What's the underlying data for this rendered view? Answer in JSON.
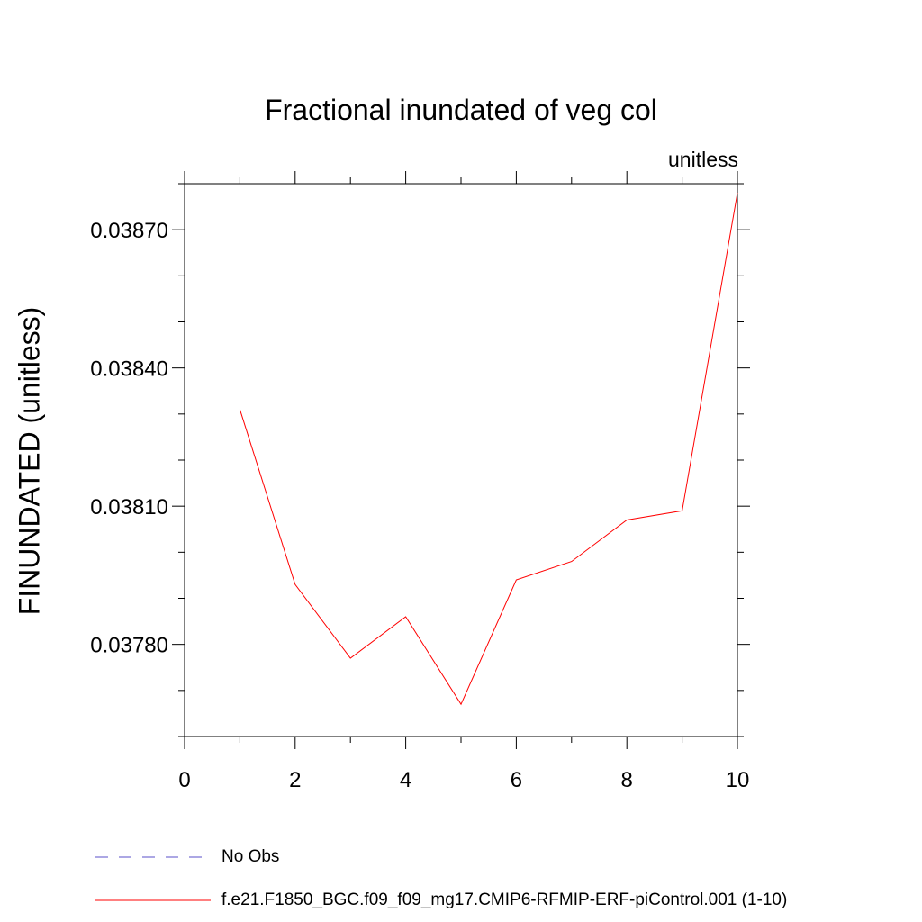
{
  "chart_data": {
    "type": "line",
    "title": "Fractional inundated of veg col",
    "units_label": "unitless",
    "ylabel": "FINUNDATED  (unitless)",
    "xlabel": "",
    "xlim": [
      0,
      10
    ],
    "ylim": [
      0.0376,
      0.0388
    ],
    "x_ticks": [
      0,
      2,
      4,
      6,
      8,
      10
    ],
    "x_tick_labels": [
      "0",
      "2",
      "4",
      "6",
      "8",
      "10"
    ],
    "y_ticks": [
      0.0378,
      0.0381,
      0.0384,
      0.0387
    ],
    "y_tick_labels": [
      "0.03780",
      "0.03810",
      "0.03840",
      "0.03870"
    ],
    "grid": false,
    "legend_position": "bottom",
    "series": [
      {
        "name": "f.e21.F1850_BGC.f09_f09_mg17.CMIP6-RFMIP-ERF-piControl.001 (1-10)",
        "color": "#ff0000",
        "x": [
          1,
          2,
          3,
          4,
          5,
          6,
          7,
          8,
          9,
          10
        ],
        "y": [
          0.03831,
          0.03793,
          0.03777,
          0.03786,
          0.03767,
          0.03794,
          0.03798,
          0.03807,
          0.03809,
          0.03878
        ]
      }
    ],
    "legend": [
      {
        "label": "No Obs",
        "color": "#5a4fc9",
        "style": "dashed"
      },
      {
        "label": "f.e21.F1850_BGC.f09_f09_mg17.CMIP6-RFMIP-ERF-piControl.001 (1-10)",
        "color": "#ff0000",
        "style": "solid"
      }
    ]
  }
}
